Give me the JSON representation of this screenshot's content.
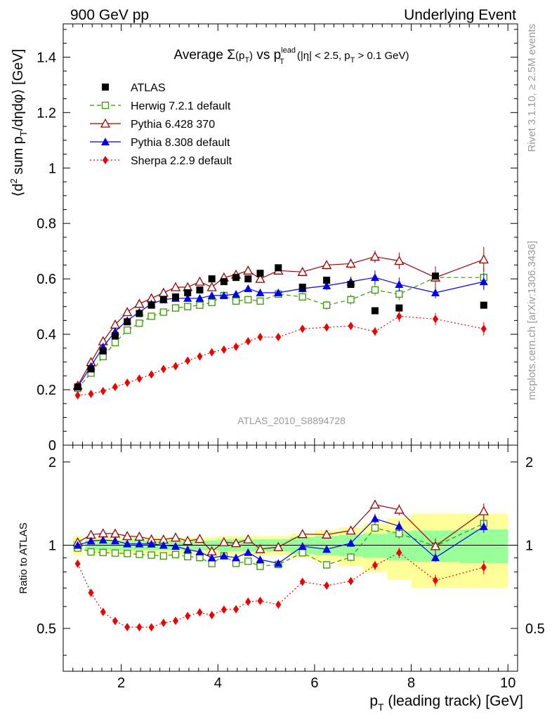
{
  "header": {
    "left": "900 GeV pp",
    "right": "Underlying Event"
  },
  "side_labels": {
    "right_top": "Rivet 3.1.10, ≥ 2.5M events",
    "right_bottom": "mcplots.cern.ch [arXiv:1306.3436]"
  },
  "analysis_id": "ATLAS_2010_S8894728",
  "chart_data": {
    "type": "line",
    "title": {
      "pre": "Average ",
      "sigma": "Σ",
      "sigma_arg": "(p",
      "sigma_sub": "T",
      "sigma_close": ")",
      "vs": " vs p",
      "vs_sup": "lead",
      "vs_sub": "T",
      "post1": " (|η| < 2.5, p",
      "post_sub": "T",
      "post2": " > 0.1 GeV)"
    },
    "ylabel": {
      "pre": "⟨d",
      "sup": "2",
      "mid": " sum p",
      "sub": "T",
      "post": "/dηdφ⟩ [GeV]"
    },
    "xlabel": {
      "pre": "p",
      "sub": "T",
      "post": " (leading track) [GeV]"
    },
    "ratio_ylabel": "Ratio to ATLAS",
    "xlim": [
      0.8,
      10.2
    ],
    "ylim": [
      0,
      1.52
    ],
    "ratio_ylim": [
      0.35,
      2.3
    ],
    "x_ticks": [
      "2",
      "4",
      "6",
      "8",
      "10"
    ],
    "y_ticks": [
      "0",
      "0.2",
      "0.4",
      "0.6",
      "0.8",
      "1",
      "1.2",
      "1.4"
    ],
    "ratio_y_ticks": [
      "0.5",
      "1",
      "2"
    ],
    "legend_position": "top-left",
    "x": [
      1.1,
      1.375,
      1.625,
      1.875,
      2.125,
      2.375,
      2.625,
      2.875,
      3.125,
      3.375,
      3.625,
      3.875,
      4.125,
      4.375,
      4.625,
      4.875,
      5.25,
      5.75,
      6.25,
      6.75,
      7.25,
      7.75,
      8.5,
      9.5
    ],
    "x_err": [
      0.1,
      0.125,
      0.125,
      0.125,
      0.125,
      0.125,
      0.125,
      0.125,
      0.125,
      0.125,
      0.125,
      0.125,
      0.125,
      0.125,
      0.125,
      0.125,
      0.25,
      0.25,
      0.25,
      0.25,
      0.25,
      0.25,
      0.5,
      0.5
    ],
    "data": {
      "name": "ATLAS",
      "values": [
        0.21,
        0.275,
        0.34,
        0.395,
        0.445,
        0.475,
        0.505,
        0.525,
        0.535,
        0.55,
        0.56,
        0.6,
        0.59,
        0.605,
        0.6,
        0.62,
        0.64,
        0.57,
        0.595,
        0.58,
        0.485,
        0.495,
        0.61,
        0.505
      ],
      "band_stat": [
        0.04,
        0.04,
        0.04,
        0.04,
        0.04,
        0.04,
        0.04,
        0.04,
        0.04,
        0.04,
        0.04,
        0.04,
        0.05,
        0.05,
        0.05,
        0.05,
        0.05,
        0.07,
        0.08,
        0.09,
        0.1,
        0.12,
        0.13,
        0.14
      ],
      "band_tot": [
        0.08,
        0.07,
        0.07,
        0.07,
        0.07,
        0.07,
        0.07,
        0.07,
        0.07,
        0.07,
        0.07,
        0.07,
        0.08,
        0.08,
        0.08,
        0.08,
        0.08,
        0.1,
        0.13,
        0.16,
        0.2,
        0.25,
        0.3,
        0.3
      ]
    },
    "series": [
      {
        "name": "Herwig 7.2.1 default",
        "color": "#339900",
        "marker": "open-square",
        "dash": "6,4",
        "values": [
          0.205,
          0.26,
          0.32,
          0.37,
          0.415,
          0.44,
          0.465,
          0.48,
          0.495,
          0.5,
          0.505,
          0.515,
          0.54,
          0.52,
          0.525,
          0.52,
          0.545,
          0.535,
          0.505,
          0.525,
          0.56,
          0.545,
          0.605,
          0.605
        ],
        "err": [
          0.004,
          0.005,
          0.006,
          0.007,
          0.008,
          0.008,
          0.009,
          0.009,
          0.01,
          0.01,
          0.01,
          0.011,
          0.011,
          0.012,
          0.012,
          0.012,
          0.012,
          0.014,
          0.016,
          0.018,
          0.02,
          0.022,
          0.03,
          0.04
        ]
      },
      {
        "name": "Pythia 6.428 370",
        "color": "#990000",
        "marker": "open-triangle",
        "dash": "",
        "values": [
          0.215,
          0.3,
          0.375,
          0.435,
          0.48,
          0.51,
          0.53,
          0.55,
          0.57,
          0.57,
          0.59,
          0.57,
          0.605,
          0.615,
          0.63,
          0.6,
          0.63,
          0.625,
          0.65,
          0.655,
          0.68,
          0.665,
          0.605,
          0.67
        ],
        "err": [
          0.004,
          0.005,
          0.006,
          0.007,
          0.008,
          0.008,
          0.009,
          0.009,
          0.01,
          0.01,
          0.01,
          0.011,
          0.011,
          0.012,
          0.012,
          0.012,
          0.012,
          0.014,
          0.016,
          0.018,
          0.022,
          0.03,
          0.04,
          0.045
        ]
      },
      {
        "name": "Pythia 8.308 default",
        "color": "#0000ee",
        "marker": "filled-triangle",
        "dash": "",
        "values": [
          0.21,
          0.285,
          0.355,
          0.41,
          0.45,
          0.48,
          0.51,
          0.525,
          0.53,
          0.53,
          0.53,
          0.54,
          0.54,
          0.545,
          0.565,
          0.55,
          0.55,
          0.565,
          0.575,
          0.59,
          0.605,
          0.58,
          0.55,
          0.59
        ],
        "err": [
          0.004,
          0.005,
          0.006,
          0.007,
          0.008,
          0.008,
          0.009,
          0.009,
          0.01,
          0.01,
          0.01,
          0.011,
          0.011,
          0.012,
          0.012,
          0.012,
          0.012,
          0.014,
          0.016,
          0.018,
          0.025,
          0.025,
          0.02,
          0.03
        ]
      },
      {
        "name": "Sherpa 2.2.9 default",
        "color": "#ee0000",
        "marker": "filled-diamond",
        "dash": "2,3",
        "values": [
          0.18,
          0.185,
          0.195,
          0.21,
          0.225,
          0.24,
          0.255,
          0.275,
          0.285,
          0.305,
          0.32,
          0.335,
          0.345,
          0.355,
          0.375,
          0.39,
          0.39,
          0.42,
          0.425,
          0.43,
          0.41,
          0.465,
          0.455,
          0.42
        ],
        "err": [
          0.003,
          0.004,
          0.004,
          0.005,
          0.005,
          0.006,
          0.006,
          0.006,
          0.007,
          0.007,
          0.008,
          0.008,
          0.008,
          0.009,
          0.009,
          0.009,
          0.01,
          0.011,
          0.012,
          0.014,
          0.016,
          0.02,
          0.022,
          0.024
        ]
      }
    ]
  }
}
